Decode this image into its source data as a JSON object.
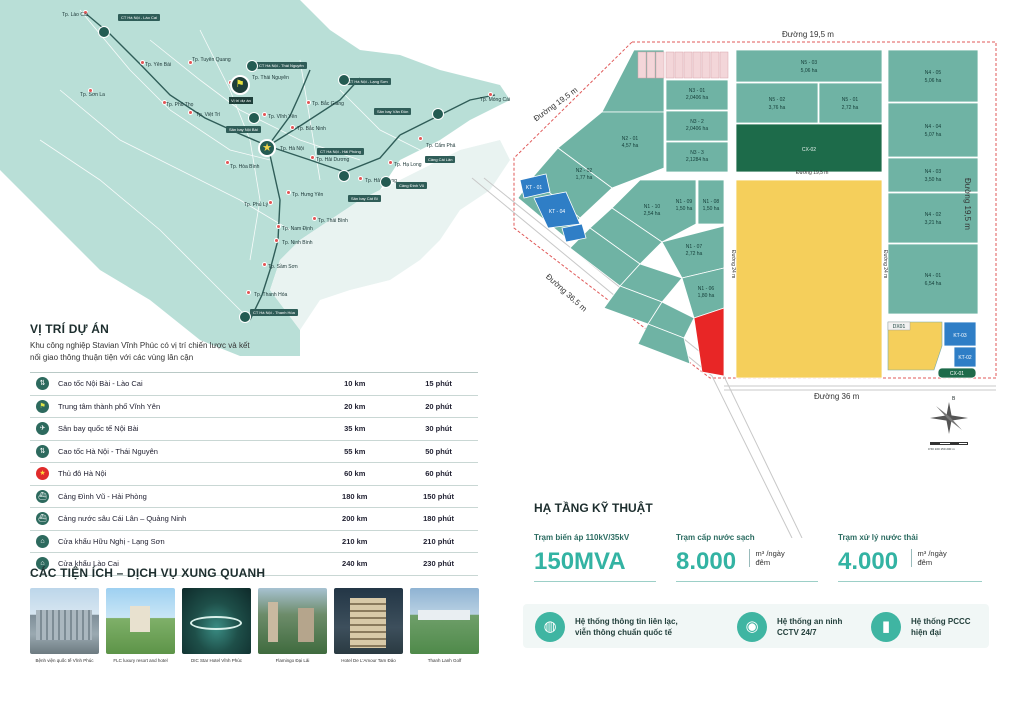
{
  "map": {
    "provinces": [
      "Tp. Lào Cai",
      "Tp. Yên Bái",
      "Tp. Tuyên Quang",
      "Tp. Thái Nguyên",
      "Tp. Sơn La",
      "Tp. Phú Thọ",
      "Tp. Việt Trì",
      "Tp. Vĩnh Yên",
      "Tp. Bắc Giang",
      "Tp. Bắc Ninh",
      "Tp. Hà Nội",
      "Tp. Hải Dương",
      "Tp. Hòa Bình",
      "Tp. Hưng Yên",
      "Tp. Hải Phòng",
      "Tp. Hạ Long",
      "Tp. Cẩm Phả",
      "Tp. Phủ Lý",
      "Tp. Thái Bình",
      "Tp. Nam Định",
      "Tp. Ninh Bình",
      "Tp. Sầm Sơn",
      "Tp. Thanh Hóa",
      "Tp. Móng Cái"
    ],
    "project_tag": "Vị trí dự án",
    "tags": [
      "CT Hà Nội - Lào Cai",
      "CT Hà Nội - Thái Nguyên",
      "CT Hà Nội - Lạng Sơn",
      "CT Hà Nội - Hải Phòng",
      "Sân bay Nội Bài",
      "Sân bay Vân Đồn",
      "Cảng Đình Vũ",
      "Cảng Cái Lân",
      "Sân bay Cát Bi",
      "CT Hà Nội - Thanh Hóa"
    ]
  },
  "location": {
    "title": "VỊ TRÍ DỰ ÁN",
    "description": "Khu công nghiệp Stavian Vĩnh Phúc có vị trí chiến lược và kết nối giao thông thuận tiện với các vùng lân cận",
    "rows": [
      {
        "icon": "highway-icon",
        "name": "Cao tốc Nội Bài - Lào Cai",
        "distance": "10 km",
        "time": "15 phút"
      },
      {
        "icon": "flag-icon",
        "name": "Trung tâm thành phố Vĩnh Yên",
        "distance": "20 km",
        "time": "20 phút"
      },
      {
        "icon": "airplane-icon",
        "name": "Sân bay quốc tế Nội Bài",
        "distance": "35 km",
        "time": "30 phút"
      },
      {
        "icon": "highway-icon",
        "name": "Cao tốc Hà Nội - Thái Nguyên",
        "distance": "55 km",
        "time": "50 phút"
      },
      {
        "icon": "star-icon",
        "name": "Thủ đô Hà Nội",
        "distance": "60 km",
        "time": "60 phút"
      },
      {
        "icon": "ship-icon",
        "name": "Cảng Đình Vũ - Hải Phòng",
        "distance": "180 km",
        "time": "150 phút"
      },
      {
        "icon": "ship-icon",
        "name": "Cảng nước sâu Cái Lân – Quảng Ninh",
        "distance": "200 km",
        "time": "180 phút"
      },
      {
        "icon": "border-gate-icon",
        "name": "Cửa khẩu Hữu Nghị - Lạng Sơn",
        "distance": "210 km",
        "time": "210 phút"
      },
      {
        "icon": "border-gate-icon",
        "name": "Cửa khẩu Lào Cai",
        "distance": "240 km",
        "time": "230 phút"
      }
    ]
  },
  "amenities": {
    "title": "CÁC TIỆN ÍCH – DỊCH VỤ XUNG QUANH",
    "items": [
      {
        "caption": "Bệnh viện quốc tế Vĩnh Phúc"
      },
      {
        "caption": "FLC luxury resort and hotel"
      },
      {
        "caption": "DIC Star Hotel Vĩnh Phúc"
      },
      {
        "caption": "Flamingo Đại Lải"
      },
      {
        "caption": "Hotel De L'Amour Tam Đảo"
      },
      {
        "caption": "Thanh Lanh Golf"
      }
    ]
  },
  "site_plan": {
    "roads": {
      "top": "Đường 19,5 m",
      "left": "Đường 19,5 m",
      "right": "Đường 19,5 m",
      "bottom": "Đường 36 m",
      "diagonal": "Đường 36,5 m",
      "middle": "Đường 19,5 m",
      "vertical_a": "Đường 24 m",
      "vertical_b": "Đường 24 m"
    },
    "plots": {
      "n5_03": [
        "N5 - 03",
        "5,06 ha"
      ],
      "n5_02": [
        "N5 - 02",
        "3,76 ha"
      ],
      "n5_01": [
        "N5 - 01",
        "2,72 ha"
      ],
      "n4_05": [
        "N4 - 05",
        "5,06 ha"
      ],
      "n4_04": [
        "N4 - 04",
        "5,07 ha"
      ],
      "n4_03": [
        "N4 - 03",
        "3,50 ha"
      ],
      "n4_02": [
        "N4 - 02",
        "3,21 ha"
      ],
      "n4_01": [
        "N4 - 01",
        "6,54 ha"
      ],
      "n3_01": [
        "N3 - 01",
        "2,0406 ha"
      ],
      "n3_2": [
        "N3 - 2",
        "2,0406 ha"
      ],
      "n3_3": [
        "N3 - 3",
        "2,1284 ha"
      ],
      "n2_01": [
        "N2 - 01",
        "4,57 ha"
      ],
      "n2_02": [
        "N2 - 02",
        "1,77 ha"
      ],
      "n1_10": [
        "N1 - 10",
        "2,54 ha"
      ],
      "n1_09": [
        "N1 - 09",
        "1,50 ha"
      ],
      "n1_08": [
        "N1 - 08",
        "1,50 ha"
      ],
      "n1_07": [
        "N1 - 07",
        "2,72 ha"
      ],
      "n1_06": [
        "N1 - 06",
        "1,80 ha"
      ],
      "cx_02": "CX-02",
      "cx_01": "CX-01",
      "kt_01": "KT - 01",
      "kt_04": "KT - 04",
      "kt_02": "KT-02",
      "kt_03": "KT-03",
      "dx01": "DX01"
    },
    "compass_label": "B",
    "scale_label": "0 50 100 150 200 m"
  },
  "infrastructure": {
    "title": "HẠ TẦNG KỸ THUẬT",
    "cards": [
      {
        "name": "Trạm biến áp 110kV/35kV",
        "value": "150MVA",
        "unit": ""
      },
      {
        "name": "Trạm cấp nước sạch",
        "value": "8.000",
        "unit_line1": "m³ /ngày",
        "unit_line2": "đêm"
      },
      {
        "name": "Trạm xử lý nước thải",
        "value": "4.000",
        "unit_line1": "m³ /ngày",
        "unit_line2": "đêm"
      }
    ],
    "systems": [
      {
        "line1": "Hệ thống thông tin liên lạc,",
        "line2": "viễn thông chuẩn quốc tế"
      },
      {
        "line1": "Hệ thống an ninh",
        "line2": "CCTV 24/7"
      },
      {
        "line1": "Hệ thống PCCC",
        "line2": "hiện đại"
      }
    ]
  },
  "colors": {
    "plot": "#6fb3a4",
    "green_zone": "#1d6b4a",
    "yellow_zone": "#f5cf5b",
    "red_zone": "#e82626",
    "blue_zone": "#2f7ec6",
    "accent": "#33b3a3"
  }
}
